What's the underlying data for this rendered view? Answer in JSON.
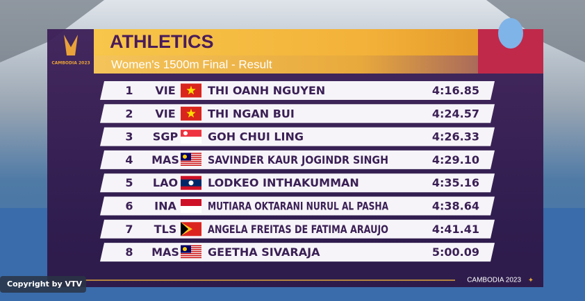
{
  "logo": {
    "text": "CAMBODIA 2023"
  },
  "header": {
    "title": "ATHLETICS",
    "subtitle": "Women's 1500m Final - Result"
  },
  "rows": [
    {
      "rank": "1",
      "country": "VIE",
      "name": "THI OANH NGUYEN",
      "time": "4:16.85"
    },
    {
      "rank": "2",
      "country": "VIE",
      "name": "THI NGAN BUI",
      "time": "4:24.57"
    },
    {
      "rank": "3",
      "country": "SGP",
      "name": "GOH CHUI LING",
      "time": "4:26.33"
    },
    {
      "rank": "4",
      "country": "MAS",
      "name": "SAVINDER KAUR  JOGINDR SINGH",
      "time": "4:29.10"
    },
    {
      "rank": "5",
      "country": "LAO",
      "name": "LODKEO INTHAKUMMAN",
      "time": "4:35.16"
    },
    {
      "rank": "6",
      "country": "INA",
      "name": "MUTIARA OKTARANI NURUL AL PASHA",
      "time": "4:38.64"
    },
    {
      "rank": "7",
      "country": "TLS",
      "name": "ANGELA FREITAS DE FATIMA ARAUJO",
      "time": "4:41.41"
    },
    {
      "rank": "8",
      "country": "MAS",
      "name": "GEETHA SIVARAJA",
      "time": "5:00.09"
    }
  ],
  "footer": {
    "text": "CAMBODIA 2023"
  },
  "copyright": "Copyright by VTV"
}
